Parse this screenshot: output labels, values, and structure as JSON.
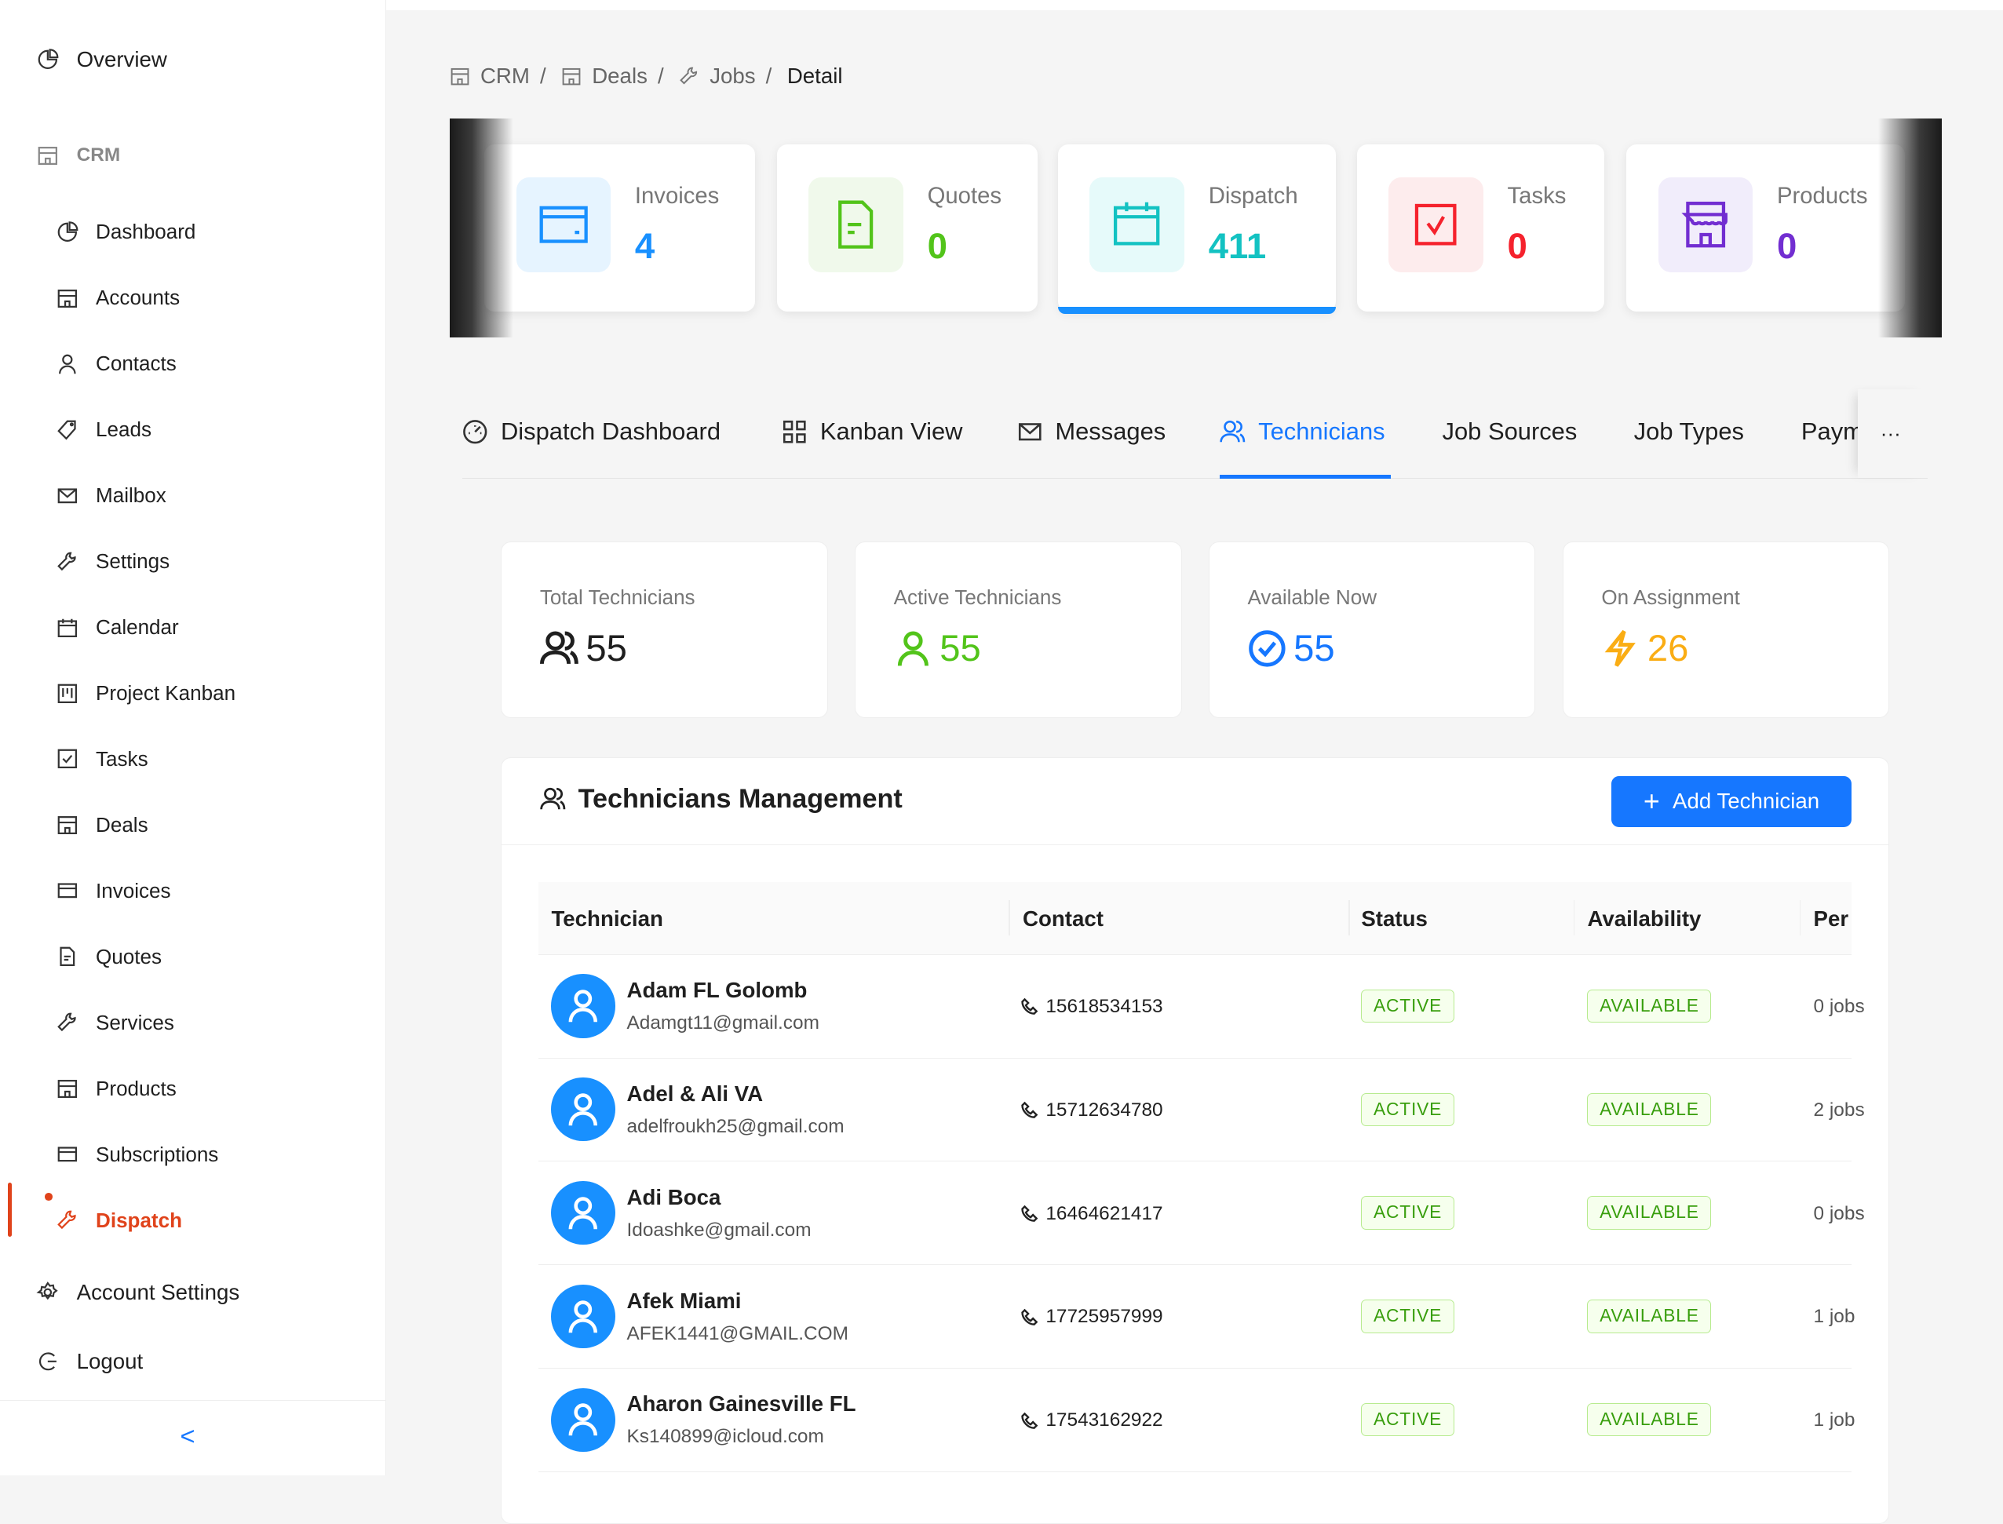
{
  "sidebar": {
    "overview": "Overview",
    "section": "CRM",
    "items": [
      {
        "label": "Dashboard",
        "icon": "pie-icon"
      },
      {
        "label": "Accounts",
        "icon": "shop-icon"
      },
      {
        "label": "Contacts",
        "icon": "user-icon"
      },
      {
        "label": "Leads",
        "icon": "tag-icon"
      },
      {
        "label": "Mailbox",
        "icon": "mail-icon"
      },
      {
        "label": "Settings",
        "icon": "tool-icon"
      },
      {
        "label": "Calendar",
        "icon": "calendar-icon"
      },
      {
        "label": "Project Kanban",
        "icon": "kanban-icon"
      },
      {
        "label": "Tasks",
        "icon": "check-square-icon"
      },
      {
        "label": "Deals",
        "icon": "shop-icon"
      },
      {
        "label": "Invoices",
        "icon": "credit-card-icon"
      },
      {
        "label": "Quotes",
        "icon": "file-icon"
      },
      {
        "label": "Services",
        "icon": "tool-icon"
      },
      {
        "label": "Products",
        "icon": "shop-icon"
      },
      {
        "label": "Subscriptions",
        "icon": "credit-card-icon"
      },
      {
        "label": "Dispatch",
        "icon": "tool-icon",
        "active": true
      }
    ],
    "account_settings": "Account Settings",
    "logout": "Logout",
    "collapse": "<",
    "active_color": "#e0431b"
  },
  "breadcrumb": [
    "CRM",
    "/",
    "Deals",
    "/",
    "Jobs",
    "/",
    "Detail"
  ],
  "cards": [
    {
      "label": "Invoices",
      "value": "4",
      "color": "#1890ff",
      "bg": "#e6f4ff"
    },
    {
      "label": "Quotes",
      "value": "0",
      "color": "#52c41a",
      "bg": "#f0f9eb"
    },
    {
      "label": "Dispatch",
      "value": "411",
      "color": "#13c2c2",
      "bg": "#e6fafa"
    },
    {
      "label": "Tasks",
      "value": "0",
      "color": "#f5222d",
      "bg": "#fdeced"
    },
    {
      "label": "Products",
      "value": "0",
      "color": "#722ed1",
      "bg": "#f1edfb"
    }
  ],
  "tabs": [
    "Dispatch Dashboard",
    "Kanban View",
    "Messages",
    "Technicians",
    "Job Sources",
    "Job Types",
    "Paym",
    "···"
  ],
  "stats": [
    {
      "label": "Total Technicians",
      "value": "55",
      "color": "#1f1f1f"
    },
    {
      "label": "Active Technicians",
      "value": "55",
      "color": "#52c41a"
    },
    {
      "label": "Available Now",
      "value": "55",
      "color": "#1677ff"
    },
    {
      "label": "On Assignment",
      "value": "26",
      "color": "#faad14"
    }
  ],
  "panel": {
    "title": "Technicians Management",
    "add_label": "Add Technician"
  },
  "table": {
    "columns": [
      "Technician",
      "Contact",
      "Status",
      "Availability",
      "Per"
    ],
    "rows": [
      {
        "name": "Adam FL Golomb",
        "email": "Adamgt11@gmail.com",
        "phone": "15618534153",
        "status": "ACTIVE",
        "availability": "AVAILABLE",
        "perf": "0 jobs"
      },
      {
        "name": "Adel & Ali VA",
        "email": "adelfroukh25@gmail.com",
        "phone": "15712634780",
        "status": "ACTIVE",
        "availability": "AVAILABLE",
        "perf": "2 jobs"
      },
      {
        "name": "Adi Boca",
        "email": "Idoashke@gmail.com",
        "phone": "16464621417",
        "status": "ACTIVE",
        "availability": "AVAILABLE",
        "perf": "0 jobs"
      },
      {
        "name": "Afek Miami",
        "email": "AFEK1441@GMAIL.COM",
        "phone": "17725957999",
        "status": "ACTIVE",
        "availability": "AVAILABLE",
        "perf": "1 job"
      },
      {
        "name": "Aharon Gainesville FL",
        "email": "Ks140899@icloud.com",
        "phone": "17543162922",
        "status": "ACTIVE",
        "availability": "AVAILABLE",
        "perf": "1 job"
      }
    ]
  }
}
